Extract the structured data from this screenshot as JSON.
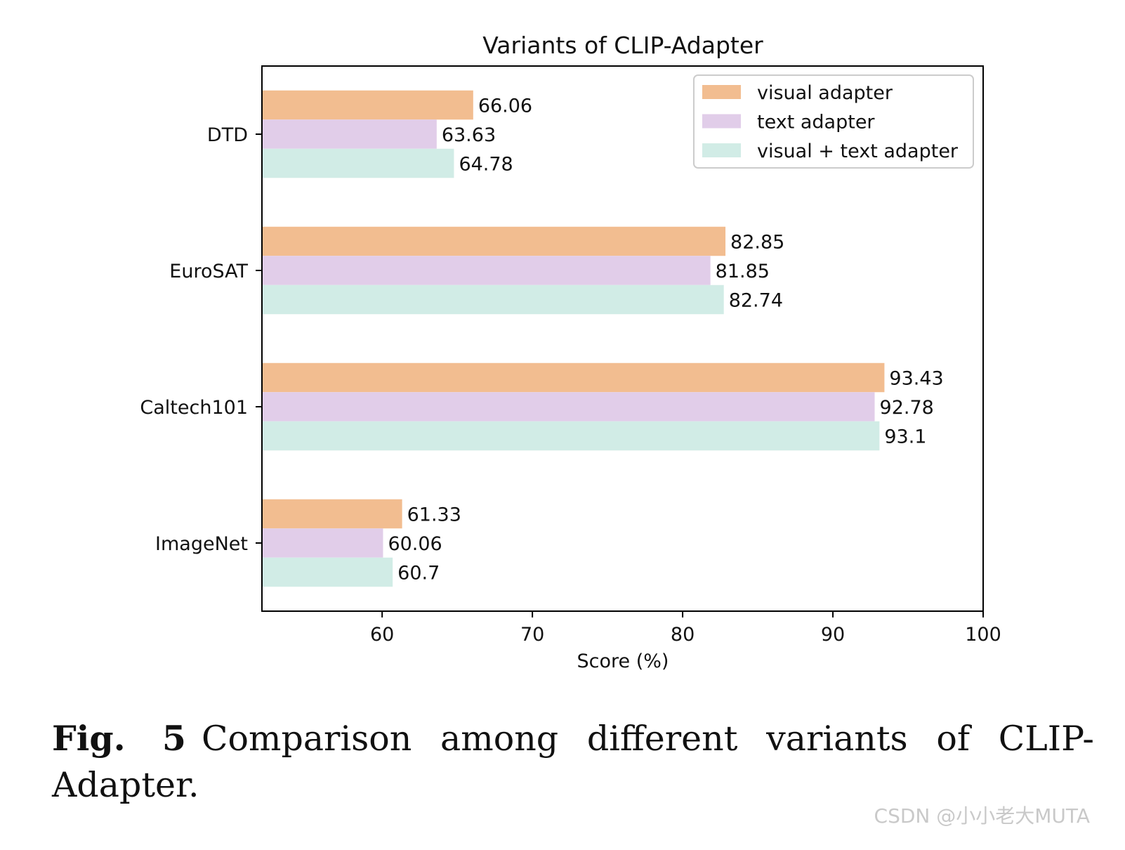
{
  "chart_data": {
    "type": "bar",
    "orientation": "horizontal",
    "title": "Variants of CLIP-Adapter",
    "xlabel": "Score (%)",
    "ylabel": "",
    "categories": [
      "DTD",
      "EuroSAT",
      "Caltech101",
      "ImageNet"
    ],
    "series": [
      {
        "name": "visual adapter",
        "color": "#f2bd90",
        "values": [
          66.06,
          82.85,
          93.43,
          61.33
        ]
      },
      {
        "name": "text adapter",
        "color": "#e1cde9",
        "values": [
          63.63,
          81.85,
          92.78,
          60.06
        ]
      },
      {
        "name": "visual + text adapter",
        "color": "#d1ece6",
        "values": [
          64.78,
          82.74,
          93.1,
          60.7
        ]
      }
    ],
    "data_labels": [
      [
        "66.06",
        "63.63",
        "64.78"
      ],
      [
        "82.85",
        "81.85",
        "82.74"
      ],
      [
        "93.43",
        "92.78",
        "93.1"
      ],
      [
        "61.33",
        "60.06",
        "60.7"
      ]
    ],
    "xlim": [
      52,
      100
    ],
    "xticks": [
      60,
      70,
      80,
      90,
      100
    ],
    "xtick_labels": [
      "60",
      "70",
      "80",
      "90",
      "100"
    ],
    "grid": false,
    "legend_position": "top-right"
  },
  "caption": {
    "label": "Fig. 5",
    "text": "Comparison among different variants of CLIP-Adapter."
  },
  "watermark": "CSDN @小小老大MUTA"
}
